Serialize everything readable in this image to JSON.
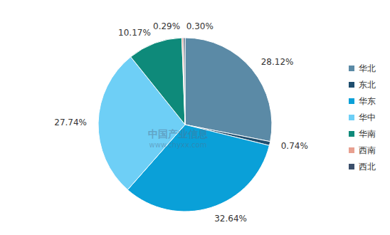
{
  "chart_data": {
    "type": "pie",
    "categories": [
      "华北",
      "东北",
      "华东",
      "华中",
      "华南",
      "西南",
      "西北"
    ],
    "values": [
      28.12,
      0.74,
      32.64,
      27.74,
      10.17,
      0.29,
      0.3
    ],
    "value_labels": [
      "28.12%",
      "0.74%",
      "32.64%",
      "27.74%",
      "10.17%",
      "0.29%",
      "0.30%"
    ],
    "colors": [
      "#5b8aa6",
      "#1f4e6e",
      "#0aa0d8",
      "#6ecff6",
      "#0e8a7a",
      "#e8a090",
      "#3b4f6b"
    ],
    "data_labels": true,
    "legend": "right",
    "annotations": [
      "中国产业信息",
      "www.chyxx.com"
    ]
  }
}
